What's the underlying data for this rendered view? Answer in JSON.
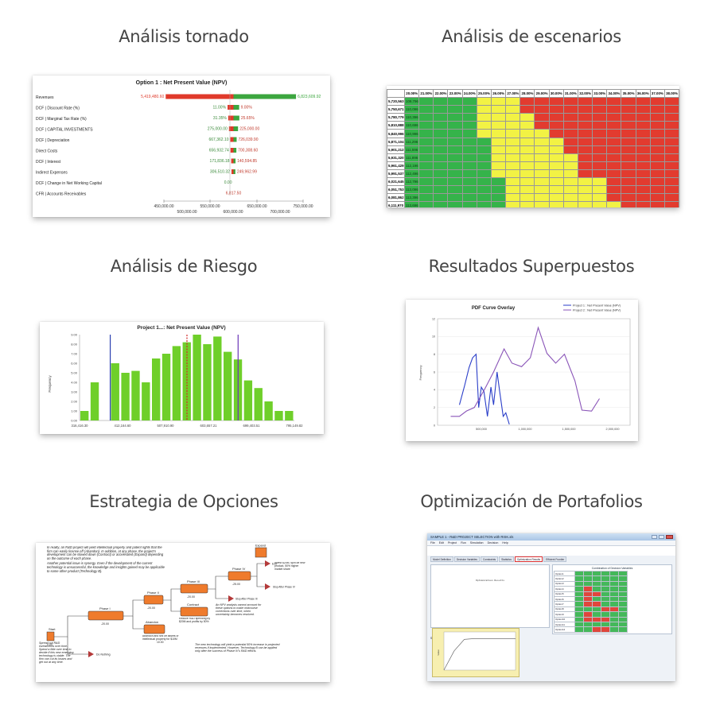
{
  "tiles": {
    "tornado": {
      "heading": "Análisis tornado",
      "chart_data": {
        "type": "bar",
        "title": "Option 1 : Net Present Value (NPV)",
        "categories": [
          "Revenues",
          "DCF | Discount Rate (%)",
          "DCF | Marginal Tax Rate (%)",
          "DCF | CAPITAL INVESTMENTS",
          "DCF | Depreciation",
          "Direct Costs",
          "DCF | Interest",
          "Indirect Expenses",
          "DCF | Change in Net Working Capital",
          "CFR | Accounts Receivables"
        ],
        "low_labels": [
          "5,419,480.60",
          "11.00%",
          "31.35%",
          "275,000.00",
          "667,362.10",
          "656,932.74",
          "171,836.18",
          "306,510.32",
          "0.00",
          ""
        ],
        "high_labels": [
          "6,823,609.92",
          "9.00%",
          "25.65%",
          "225,000.00",
          "726,039.90",
          "700,308.60",
          "140,594.85",
          "249,962.99",
          "",
          ""
        ],
        "center_labels": [
          "",
          "",
          "",
          "",
          "",
          "",
          "",
          "",
          "",
          "6,817.50"
        ],
        "series": [
          {
            "values": [
              5419480.6,
              6086000,
              6093000,
              6101000,
              6116000,
              6118000,
              6125000,
              6128000,
              6150000,
              6148000
            ]
          },
          {
            "values": [
              6823609.92,
              6211000,
              6213000,
              6199000,
              6184000,
              6181000,
              6172000,
              6170000,
              6150000,
              6152000
            ]
          }
        ],
        "base": 6150000,
        "xlim": [
          5400000,
          6900000
        ],
        "x_ticks_top": [
          "450,000.00",
          "550,000.00",
          "650,000.00",
          "750,000.00"
        ],
        "x_ticks_bottom": [
          "500,000.00",
          "600,000.00",
          "700,000.00"
        ],
        "colors": {
          "low": "#e03a2b",
          "high": "#3ca63f"
        }
      }
    },
    "scenarios": {
      "heading": "Análisis de escenarios",
      "col_headers": [
        "20.00%",
        "21.00%",
        "22.00%",
        "23.00%",
        "24.00%",
        "25.00%",
        "26.00%",
        "27.00%",
        "28.00%",
        "29.00%",
        "30.00%",
        "31.00%",
        "32.00%",
        "33.00%",
        "34.00%",
        "35.00%",
        "36.00%",
        "37.00%",
        "38.00%"
      ],
      "row_headers": [
        "5,720,563",
        "5,750,671",
        "5,780,779",
        "5,810,888",
        "5,840,996",
        "5,871,104",
        "5,901,212",
        "5,931,320",
        "5,961,429",
        "5,991,537",
        "6,021,645",
        "6,051,753",
        "6,081,862",
        "6,111,970",
        "6,142,078",
        "6,172,186"
      ],
      "first_values": [
        "109,796",
        "110,096",
        "110,396",
        "110,696",
        "110,996",
        "111,296",
        "111,596",
        "111,896",
        "112,196",
        "112,496",
        "112,796",
        "113,096",
        "113,396",
        "113,696",
        "114,000",
        "114,300"
      ],
      "yellow_counts": [
        3,
        3,
        4,
        4,
        5,
        5,
        5,
        6,
        6,
        6,
        7,
        7,
        7,
        8,
        8,
        9
      ],
      "colors": {
        "green": "#35b34a",
        "yellow": "#f2f244",
        "red": "#e23b2f"
      }
    },
    "risk": {
      "heading": "Análisis de Riesgo",
      "chart_data": {
        "type": "bar",
        "title": "Project 1...: Net Present Value (NPV)",
        "ylabel": "Frequency",
        "y_ticks": [
          "0.00",
          "1.00",
          "2.00",
          "3.00",
          "4.00",
          "5.00",
          "6.00",
          "7.00",
          "8.00",
          "9.00"
        ],
        "ylim": [
          0,
          9
        ],
        "values": [
          1.0,
          4.0,
          0,
          6.0,
          5.0,
          5.2,
          4.0,
          6.5,
          7.0,
          7.8,
          8.2,
          9.0,
          8.0,
          8.8,
          7.2,
          6.4,
          4.2,
          3.4,
          2.0,
          1.0,
          1.0
        ],
        "x_ticks": [
          "316,416.30",
          "412,164.60",
          "507,910.90",
          "603,657.21",
          "699,403.51",
          "795,149.82"
        ],
        "markers": [
          {
            "x": 3,
            "color": "#2a3fb0"
          },
          {
            "x": 10.5,
            "color": "#d12b2b"
          },
          {
            "x": 15.5,
            "color": "#6a34b8"
          }
        ],
        "colors": {
          "bar": "#6fcf2a"
        }
      }
    },
    "overlay": {
      "heading": "Resultados Superpuestos",
      "chart_data": {
        "type": "line",
        "title": "PDF Curve Overlay",
        "ylabel": "Frequency",
        "y_ticks": [
          "0",
          "2",
          "4",
          "6",
          "8",
          "10",
          "12"
        ],
        "ylim": [
          0,
          12
        ],
        "x_ticks": [
          "500,000",
          "1,000,000",
          "1,500,000",
          "2,000,000"
        ],
        "xlim": [
          0,
          2200000
        ],
        "series": [
          {
            "name": "Project 1 : Net Present Value (NPV)",
            "color": "#2a3ec9",
            "x": [
              250000,
              310000,
              360000,
              400000,
              440000,
              470000,
              500000,
              530000,
              570000,
              610000,
              640000,
              680000,
              710000,
              750000,
              780000,
              820000
            ],
            "y": [
              2.3,
              4.5,
              6.5,
              7.6,
              8.0,
              2.0,
              4.3,
              3.8,
              1.0,
              4.3,
              2.3,
              6.0,
              3.8,
              1.0,
              1.4,
              0.1
            ]
          },
          {
            "name": "Project 2 : Net Present Value (NPV)",
            "color": "#8a55b8",
            "x": [
              150000,
              250000,
              330000,
              420000,
              540000,
              640000,
              760000,
              850000,
              960000,
              1060000,
              1150000,
              1250000,
              1350000,
              1450000,
              1570000,
              1650000,
              1760000,
              1850000
            ],
            "y": [
              1.0,
              1.0,
              1.6,
              2.0,
              4.1,
              6.0,
              8.6,
              7.0,
              6.6,
              7.6,
              11.0,
              8.1,
              7.0,
              8.0,
              5.0,
              1.7,
              1.6,
              3.0
            ]
          }
        ]
      }
    },
    "options": {
      "heading": "Estrategia de Opciones",
      "intro_text": "In reality, an R&D project will yield intellectual property and patent rights that the firm can easily license off (Abandon). In addition, at any phase, the project's development can be slowed down (Contract) or accelerated (Expand) depending on the outcome of each phase.",
      "synergy_text": "Another potential issue is synergy. Even if the development of the current technology is unsuccessful, the knowledge and insights gained may be applicable to some other product (Technology B).",
      "start_label": "Start",
      "start_value": "0.00",
      "phase1_label": "Phase I",
      "phase1_value": "-20.00",
      "phase2_label": "Phase II",
      "phase2_value": "-20.00",
      "phase3_label": "Phase III",
      "phase3_value": "-20.00",
      "phase4_label": "Phase IV",
      "phase4_value": "-25.00",
      "expand_label": "Expand",
      "abandon_label": "Abandon",
      "contract_label": "Contract",
      "exit_label": "Exit",
      "do_nothing_label": "Do Nothing",
      "stop_ph3_label": "Stop After Phase III",
      "stop_ph4_label": "Stop After Phase IV",
      "expand_text": "Invest $20M, spin off new product, 50% higher market share",
      "abandon_text": "Abandon and sell off assets or intellectual property for $10M",
      "abandon_value": "10.00",
      "contract_text": "Reduce R&D spending by $20M and profits by 50%",
      "npv_text": "An NPV analysis cannot account for these options to make midcourse corrections over time, when uncertainty becomes resolved.",
      "tech_text": "The new technology will yield a potential 50% increase in projected revenues if implemented. However, Technology B can be applied only after the success of Phase IV's R&D efforts.",
      "spread_text": "Spread out R&D investments over time. Spend a little over time to decide if this new emerging technology is viable. The firm can cut its losses and get out at any time."
    },
    "portfolio": {
      "heading": "Optimización de Portafolios",
      "window_title": "SAMPLE 1 - R&D PROJECT SELECTION with RISK.xls",
      "menu_items": [
        "File",
        "Edit",
        "Project",
        "Run",
        "Simulation",
        "Decision",
        "Help"
      ],
      "tabs": [
        "Model Definition",
        "Decision Variables",
        "Constraints",
        "Statistics",
        "Optimization Results",
        "Efficient Frontier"
      ],
      "results_title": "Combination of Decision Variables",
      "options": [
        "Option1",
        "Option2",
        "Option3",
        "Option4",
        "Option5",
        "Option6",
        "Option7",
        "Option8",
        "Option9",
        "Option10",
        "Option11",
        "Option12"
      ],
      "report_title": "Optimization Results",
      "show_label": "Show",
      "dropdown_value": "Decision Variables",
      "chart_ylabel": "Value",
      "chart_data": {
        "type": "line",
        "values": [
          0,
          0.55,
          0.88,
          0.9,
          0.9,
          0.9,
          0.9,
          0.9
        ]
      }
    }
  }
}
